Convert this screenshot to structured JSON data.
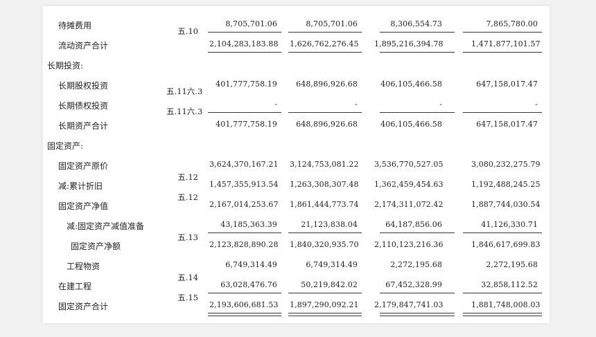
{
  "rows": [
    {
      "label": "待摊费用",
      "indent": 1,
      "note": "五.10",
      "note_pos": "hi",
      "values": [
        "8,705,701.06",
        "8,705,701.06",
        "8,306,554.73",
        "7,865,780.00"
      ],
      "line": "single"
    },
    {
      "label": "流动资产合计",
      "indent": 1,
      "note": "",
      "values": [
        "2,104,283,183.88",
        "1,626,762,276.45",
        "1,895,216,394.78",
        "1,471,877,101.57"
      ],
      "line": "single"
    },
    {
      "label": "长期投资:",
      "indent": 0,
      "note": "",
      "values": [
        "",
        "",
        "",
        ""
      ],
      "line": "none"
    },
    {
      "label": "长期股权投资",
      "indent": 1,
      "note": "五.11六.3",
      "note_pos": "hi",
      "values": [
        "401,777,758.19",
        "648,896,926.68",
        "406,105,466.58",
        "647,158,017.47"
      ],
      "line": "none"
    },
    {
      "label": "长期债权投资",
      "indent": 1,
      "note": "五.11六.3",
      "note_pos": "hi",
      "values": [
        "-",
        "-",
        "-",
        "-"
      ],
      "line": "single"
    },
    {
      "label": "长期资产合计",
      "indent": 1,
      "note": "",
      "values": [
        "401,777,758.19",
        "648,896,926.68",
        "406,105,466.58",
        "647,158,017.47"
      ],
      "line": "none"
    },
    {
      "label": "固定资产:",
      "indent": 0,
      "note": "",
      "values": [
        "",
        "",
        "",
        ""
      ],
      "line": "none"
    },
    {
      "label": "固定资产原价",
      "indent": 1,
      "note": "",
      "values": [
        "3,624,370,167.21",
        "3,124,753,081.22",
        "3,536,770,527.05",
        "3,080,232,275.79"
      ],
      "line": "none"
    },
    {
      "label": "减:累计折旧",
      "indent": 1,
      "note": "五.12",
      "note_pos": "lo",
      "values": [
        "1,457,355,913.54",
        "1,263,308,307.48",
        "1,362,459,454.63",
        "1,192,488,245.25"
      ],
      "line": "none"
    },
    {
      "label": "固定资产净值",
      "indent": 1,
      "note": "五.12",
      "note_pos": "lo",
      "values": [
        "2,167,014,253.67",
        "1,861,444,773.74",
        "2,174,311,072.42",
        "1,887,744,030.54"
      ],
      "line": "none"
    },
    {
      "label": "减:固定资产减值准备",
      "indent": 2,
      "note": "",
      "values": [
        "43,185,363.39",
        "21,123,838.04",
        "64,187,856.06",
        "41,126,330.71"
      ],
      "line": "single"
    },
    {
      "label": "固定资产净额",
      "indent": 3,
      "note": "五.13",
      "note_pos": "lo",
      "values": [
        "2,123,828,890.28",
        "1,840,320,935.70",
        "2,110,123,216.36",
        "1,846,617,699.83"
      ],
      "line": "none"
    },
    {
      "label": "工程物资",
      "indent": 2,
      "note": "",
      "values": [
        "6,749,314.49",
        "6,749,314.49",
        "2,272,195.68",
        "2,272,195.68"
      ],
      "line": "none"
    },
    {
      "label": "在建工程",
      "indent": 1,
      "note": "五.14",
      "note_pos": "lo",
      "values": [
        "63,028,476.76",
        "50,219,842.02",
        "67,452,328.99",
        "32,858,112.52"
      ],
      "line": "single"
    },
    {
      "label": "固定资产合计",
      "indent": 1,
      "note": "五.15",
      "note_pos": "lo",
      "values": [
        "2,193,606,681.53",
        "1,897,290,092.21",
        "2,179,847,741.03",
        "1,881,748,008.03"
      ],
      "line": "double"
    }
  ]
}
